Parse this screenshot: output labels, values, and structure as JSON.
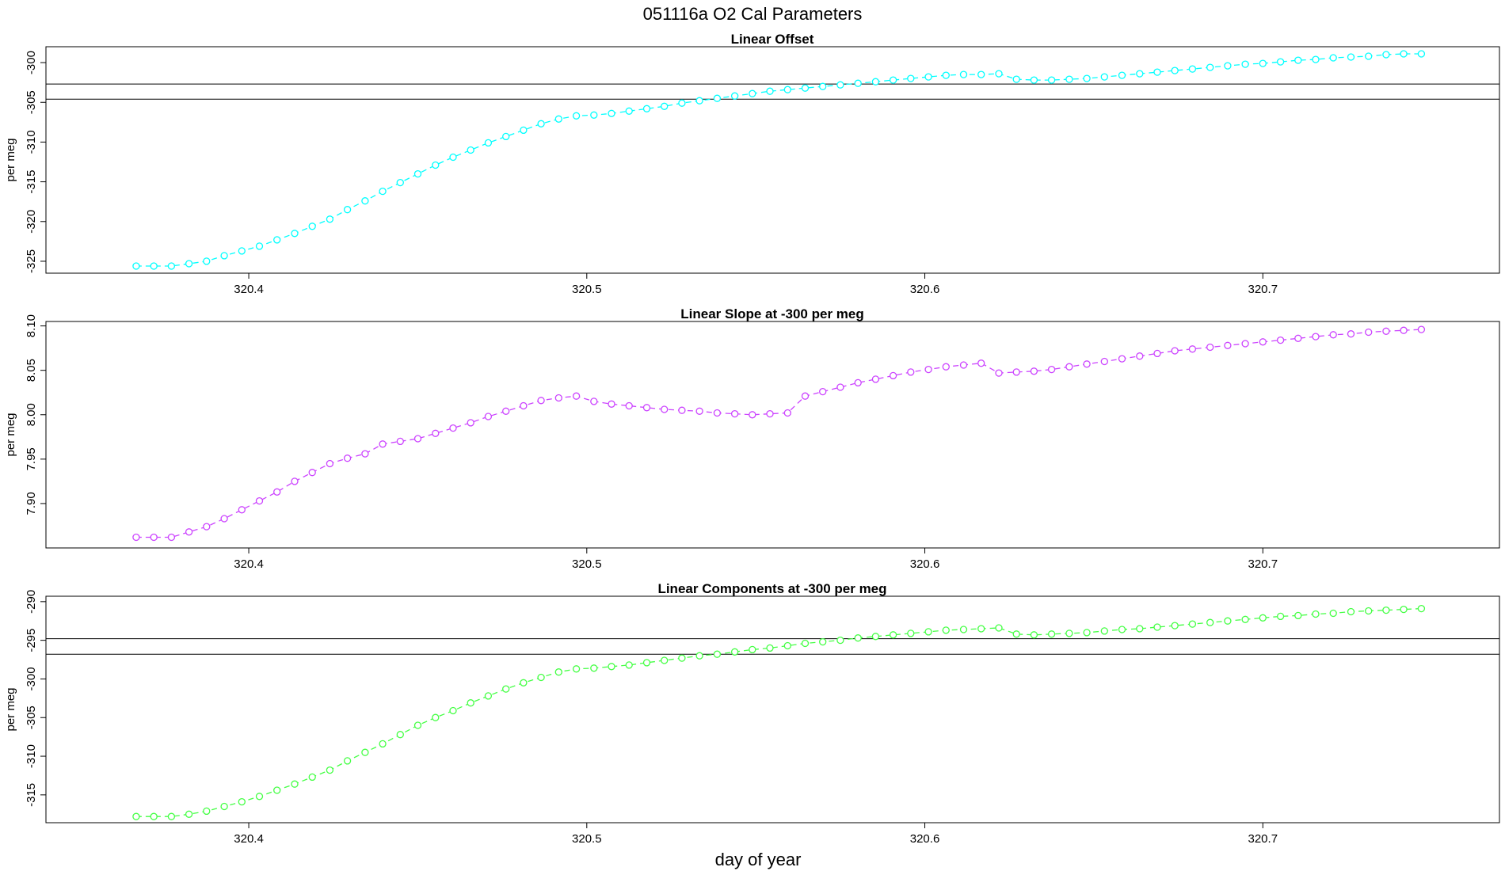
{
  "figure": {
    "title": "051116a   O2 Cal Parameters",
    "xlabel": "day of year"
  },
  "chart_data": [
    {
      "type": "line",
      "title": "Linear Offset",
      "ylabel": "per meg",
      "color": "#00ffff",
      "xlim": [
        320.34,
        320.77
      ],
      "ylim": [
        -326.5,
        -298
      ],
      "xticks": [
        320.4,
        320.5,
        320.6,
        320.7
      ],
      "xtick_labels": [
        "320.4",
        "320.5",
        "320.6",
        "320.7"
      ],
      "yticks": [
        -325,
        -320,
        -315,
        -310,
        -305,
        -300
      ],
      "ytick_labels": [
        "-325",
        "-320",
        "-315",
        "-310",
        "-305",
        "-300"
      ],
      "hlines": [
        -302.7,
        -304.6
      ],
      "x_start": 320.3667,
      "x_step": 0.005208,
      "values": [
        -325.6,
        -325.6,
        -325.6,
        -325.3,
        -325.0,
        -324.3,
        -323.7,
        -323.1,
        -322.3,
        -321.5,
        -320.6,
        -319.7,
        -318.5,
        -317.4,
        -316.2,
        -315.1,
        -314.0,
        -312.9,
        -311.9,
        -311.0,
        -310.1,
        -309.3,
        -308.5,
        -307.7,
        -307.1,
        -306.7,
        -306.6,
        -306.4,
        -306.1,
        -305.8,
        -305.5,
        -305.1,
        -304.8,
        -304.5,
        -304.2,
        -303.9,
        -303.6,
        -303.4,
        -303.2,
        -303.0,
        -302.8,
        -302.6,
        -302.4,
        -302.2,
        -302.0,
        -301.8,
        -301.6,
        -301.5,
        -301.5,
        -301.4,
        -302.1,
        -302.2,
        -302.2,
        -302.1,
        -302.0,
        -301.8,
        -301.6,
        -301.4,
        -301.2,
        -301.0,
        -300.8,
        -300.6,
        -300.4,
        -300.2,
        -300.1,
        -299.9,
        -299.7,
        -299.6,
        -299.4,
        -299.3,
        -299.2,
        -299.0,
        -298.9,
        -298.9
      ]
    },
    {
      "type": "line",
      "title": "Linear Slope at -300 per meg",
      "ylabel": "per meg",
      "color": "#cc44ff",
      "xlim": [
        320.34,
        320.77
      ],
      "ylim": [
        7.85,
        8.105
      ],
      "xticks": [
        320.4,
        320.5,
        320.6,
        320.7
      ],
      "xtick_labels": [
        "320.4",
        "320.5",
        "320.6",
        "320.7"
      ],
      "yticks": [
        7.9,
        7.95,
        8.0,
        8.05,
        8.1
      ],
      "ytick_labels": [
        "7.90",
        "7.95",
        "8.00",
        "8.05",
        "8.10"
      ],
      "hlines": [],
      "x_start": 320.3667,
      "x_step": 0.005208,
      "values": [
        7.862,
        7.862,
        7.862,
        7.868,
        7.874,
        7.883,
        7.893,
        7.903,
        7.913,
        7.925,
        7.935,
        7.945,
        7.951,
        7.956,
        7.967,
        7.97,
        7.973,
        7.979,
        7.985,
        7.991,
        7.998,
        8.004,
        8.01,
        8.016,
        8.019,
        8.021,
        8.015,
        8.012,
        8.01,
        8.008,
        8.006,
        8.005,
        8.004,
        8.002,
        8.001,
        8.0,
        8.001,
        8.002,
        8.021,
        8.026,
        8.031,
        8.036,
        8.04,
        8.044,
        8.048,
        8.051,
        8.054,
        8.056,
        8.058,
        8.047,
        8.048,
        8.049,
        8.051,
        8.054,
        8.057,
        8.06,
        8.063,
        8.066,
        8.069,
        8.072,
        8.074,
        8.076,
        8.078,
        8.08,
        8.082,
        8.084,
        8.086,
        8.088,
        8.09,
        8.091,
        8.093,
        8.094,
        8.095,
        8.096
      ]
    },
    {
      "type": "line",
      "title": "Linear Components at -300 per meg",
      "ylabel": "per meg",
      "color": "#44ff44",
      "xlim": [
        320.34,
        320.77
      ],
      "ylim": [
        -318.6,
        -289.3
      ],
      "xticks": [
        320.4,
        320.5,
        320.6,
        320.7
      ],
      "xtick_labels": [
        "320.4",
        "320.5",
        "320.6",
        "320.7"
      ],
      "yticks": [
        -315,
        -310,
        -305,
        -300,
        -295,
        -290
      ],
      "ytick_labels": [
        "-315",
        "-310",
        "-305",
        "-300",
        "-295",
        "-290"
      ],
      "hlines": [
        -294.8,
        -296.8
      ],
      "x_start": 320.3667,
      "x_step": 0.005208,
      "values": [
        -317.8,
        -317.8,
        -317.8,
        -317.5,
        -317.1,
        -316.5,
        -315.9,
        -315.2,
        -314.4,
        -313.6,
        -312.7,
        -311.8,
        -310.6,
        -309.5,
        -308.4,
        -307.2,
        -306.0,
        -305.0,
        -304.1,
        -303.1,
        -302.2,
        -301.3,
        -300.5,
        -299.8,
        -299.1,
        -298.7,
        -298.6,
        -298.4,
        -298.2,
        -297.9,
        -297.6,
        -297.3,
        -297.0,
        -296.8,
        -296.5,
        -296.2,
        -296.0,
        -295.7,
        -295.4,
        -295.2,
        -295.0,
        -294.7,
        -294.5,
        -294.3,
        -294.1,
        -293.9,
        -293.7,
        -293.6,
        -293.5,
        -293.4,
        -294.2,
        -294.3,
        -294.2,
        -294.1,
        -294.0,
        -293.8,
        -293.6,
        -293.5,
        -293.3,
        -293.1,
        -292.9,
        -292.7,
        -292.5,
        -292.3,
        -292.1,
        -291.9,
        -291.8,
        -291.6,
        -291.5,
        -291.3,
        -291.2,
        -291.1,
        -291.0,
        -290.9
      ]
    }
  ]
}
